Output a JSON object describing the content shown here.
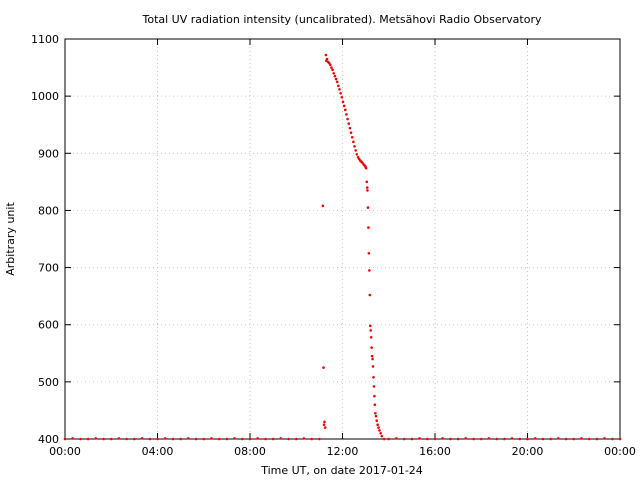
{
  "chart_data": {
    "type": "scatter",
    "title": "Total UV radiation intensity (uncalibrated). Metsähovi Radio Observatory",
    "xlabel": "Time UT, on date 2017-01-24",
    "ylabel": "Arbitrary unit",
    "x_unit": "hours UT",
    "xlim": [
      0,
      24
    ],
    "ylim": [
      400,
      1100
    ],
    "x_ticks": [
      0,
      4,
      8,
      12,
      16,
      20,
      24
    ],
    "x_tick_labels": [
      "00:00",
      "04:00",
      "08:00",
      "12:00",
      "16:00",
      "20:00",
      "00:00"
    ],
    "y_ticks": [
      400,
      500,
      600,
      700,
      800,
      900,
      1000,
      1100
    ],
    "y_tick_labels": [
      "400",
      "500",
      "600",
      "700",
      "800",
      "900",
      "1000",
      "1100"
    ],
    "grid": true,
    "marker_color": "#ff0000",
    "series": [
      {
        "x": [
          0.0,
          0.33,
          0.67,
          1.0,
          1.33,
          1.67,
          2.0,
          2.33,
          2.67,
          3.0,
          3.33,
          3.67,
          4.0,
          4.33,
          4.67,
          5.0,
          5.33,
          5.67,
          6.0,
          6.33,
          6.67,
          7.0,
          7.33,
          7.67,
          8.0,
          8.33,
          8.67,
          9.0,
          9.33,
          9.67,
          10.0,
          10.33,
          10.67,
          11.0,
          11.15,
          11.18,
          11.2,
          11.22,
          11.25,
          11.28,
          11.3,
          11.33,
          11.37,
          11.42,
          11.47,
          11.52,
          11.57,
          11.62,
          11.67,
          11.72,
          11.77,
          11.82,
          11.87,
          11.92,
          11.97,
          12.02,
          12.07,
          12.12,
          12.17,
          12.22,
          12.27,
          12.32,
          12.37,
          12.42,
          12.47,
          12.52,
          12.57,
          12.62,
          12.67,
          12.72,
          12.77,
          12.82,
          12.87,
          12.92,
          12.97,
          13.0,
          13.02,
          13.05,
          13.07,
          13.08,
          13.1,
          13.12,
          13.14,
          13.16,
          13.18,
          13.2,
          13.22,
          13.24,
          13.26,
          13.28,
          13.3,
          13.32,
          13.34,
          13.36,
          13.38,
          13.4,
          13.42,
          13.45,
          13.48,
          13.52,
          13.56,
          13.6,
          13.65,
          13.7,
          13.8,
          14.0,
          14.33,
          14.67,
          15.0,
          15.33,
          15.67,
          16.0,
          16.33,
          16.67,
          17.0,
          17.33,
          17.67,
          18.0,
          18.33,
          18.67,
          19.0,
          19.33,
          19.67,
          20.0,
          20.33,
          20.67,
          21.0,
          21.33,
          21.67,
          22.0,
          22.33,
          22.67,
          23.0,
          23.33,
          23.67,
          24.0
        ],
        "y": [
          400,
          401,
          400,
          400,
          401,
          400,
          400,
          401,
          400,
          400,
          401,
          400,
          400,
          401,
          400,
          400,
          401,
          400,
          400,
          401,
          400,
          400,
          401,
          400,
          400,
          401,
          400,
          400,
          401,
          400,
          400,
          401,
          400,
          400,
          808,
          525,
          425,
          430,
          420,
          1072,
          1062,
          1065,
          1060,
          1058,
          1055,
          1050,
          1046,
          1040,
          1035,
          1030,
          1025,
          1018,
          1012,
          1005,
          998,
          990,
          983,
          976,
          968,
          960,
          952,
          944,
          936,
          928,
          920,
          912,
          905,
          898,
          893,
          890,
          887,
          885,
          883,
          880,
          878,
          876,
          874,
          850,
          840,
          835,
          805,
          770,
          725,
          695,
          652,
          598,
          590,
          578,
          560,
          545,
          540,
          527,
          508,
          492,
          475,
          460,
          445,
          440,
          432,
          425,
          420,
          415,
          410,
          405,
          400,
          400,
          401,
          400,
          400,
          401,
          400,
          400,
          401,
          400,
          400,
          401,
          400,
          400,
          401,
          400,
          400,
          401,
          400,
          400,
          401,
          400,
          400,
          401,
          400,
          400,
          401,
          400,
          400,
          401,
          400,
          400
        ]
      }
    ]
  }
}
